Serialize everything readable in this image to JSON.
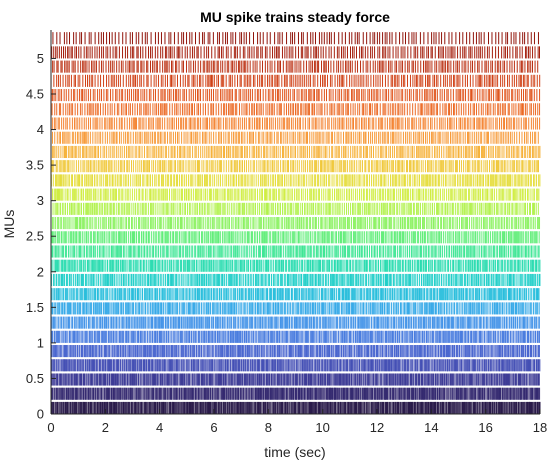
{
  "chart_data": {
    "type": "raster",
    "title": "MU spike trains steady force",
    "xlabel": "time (sec)",
    "ylabel": "MUs",
    "xlim": [
      0,
      18
    ],
    "ylim": [
      0,
      5.4
    ],
    "xticks": [
      0,
      2,
      4,
      6,
      8,
      10,
      12,
      14,
      16,
      18
    ],
    "xtick_labels": [
      "0",
      "2",
      "4",
      "6",
      "8",
      "10",
      "12",
      "14",
      "16",
      "18"
    ],
    "yticks": [
      0,
      0.5,
      1,
      1.5,
      2,
      2.5,
      3,
      3.5,
      4,
      4.5,
      5
    ],
    "ytick_labels": [
      "0",
      "0.5",
      "1",
      "1.5",
      "2",
      "2.5",
      "3",
      "3.5",
      "4",
      "4.5",
      "5"
    ],
    "row_spacing": 0.2,
    "row_height": 0.17,
    "rows": [
      {
        "y0": 0.0,
        "color": "#2a1b4a",
        "rate": 28
      },
      {
        "y0": 0.2,
        "color": "#352a70",
        "rate": 27
      },
      {
        "y0": 0.4,
        "color": "#3e3c96",
        "rate": 26
      },
      {
        "y0": 0.6,
        "color": "#4550b5",
        "rate": 25
      },
      {
        "y0": 0.8,
        "color": "#4a66cf",
        "rate": 24
      },
      {
        "y0": 1.0,
        "color": "#4a7ddf",
        "rate": 23
      },
      {
        "y0": 1.2,
        "color": "#4594e8",
        "rate": 22
      },
      {
        "y0": 1.4,
        "color": "#38aae8",
        "rate": 21
      },
      {
        "y0": 1.6,
        "color": "#29bedc",
        "rate": 21
      },
      {
        "y0": 1.8,
        "color": "#22cfc9",
        "rate": 20
      },
      {
        "y0": 2.0,
        "color": "#2adcb0",
        "rate": 20
      },
      {
        "y0": 2.2,
        "color": "#3fe695",
        "rate": 19
      },
      {
        "y0": 2.4,
        "color": "#62ee7a",
        "rate": 19
      },
      {
        "y0": 2.6,
        "color": "#8cf262",
        "rate": 18
      },
      {
        "y0": 2.8,
        "color": "#b2f24e",
        "rate": 18
      },
      {
        "y0": 3.0,
        "color": "#d0ed42",
        "rate": 17
      },
      {
        "y0": 3.2,
        "color": "#e5dd3c",
        "rate": 17
      },
      {
        "y0": 3.4,
        "color": "#f0c83a",
        "rate": 16
      },
      {
        "y0": 3.6,
        "color": "#f6b23a",
        "rate": 16
      },
      {
        "y0": 3.8,
        "color": "#f79a38",
        "rate": 15
      },
      {
        "y0": 4.0,
        "color": "#f4822f",
        "rate": 15
      },
      {
        "y0": 4.2,
        "color": "#ec6a25",
        "rate": 14
      },
      {
        "y0": 4.4,
        "color": "#e0541c",
        "rate": 14
      },
      {
        "y0": 4.6,
        "color": "#d04116",
        "rate": 13
      },
      {
        "y0": 4.8,
        "color": "#bb3012",
        "rate": 13
      },
      {
        "y0": 5.0,
        "color": "#a5200e",
        "rate": 12
      },
      {
        "y0": 5.2,
        "color": "#91140a",
        "rate": 9
      }
    ]
  }
}
